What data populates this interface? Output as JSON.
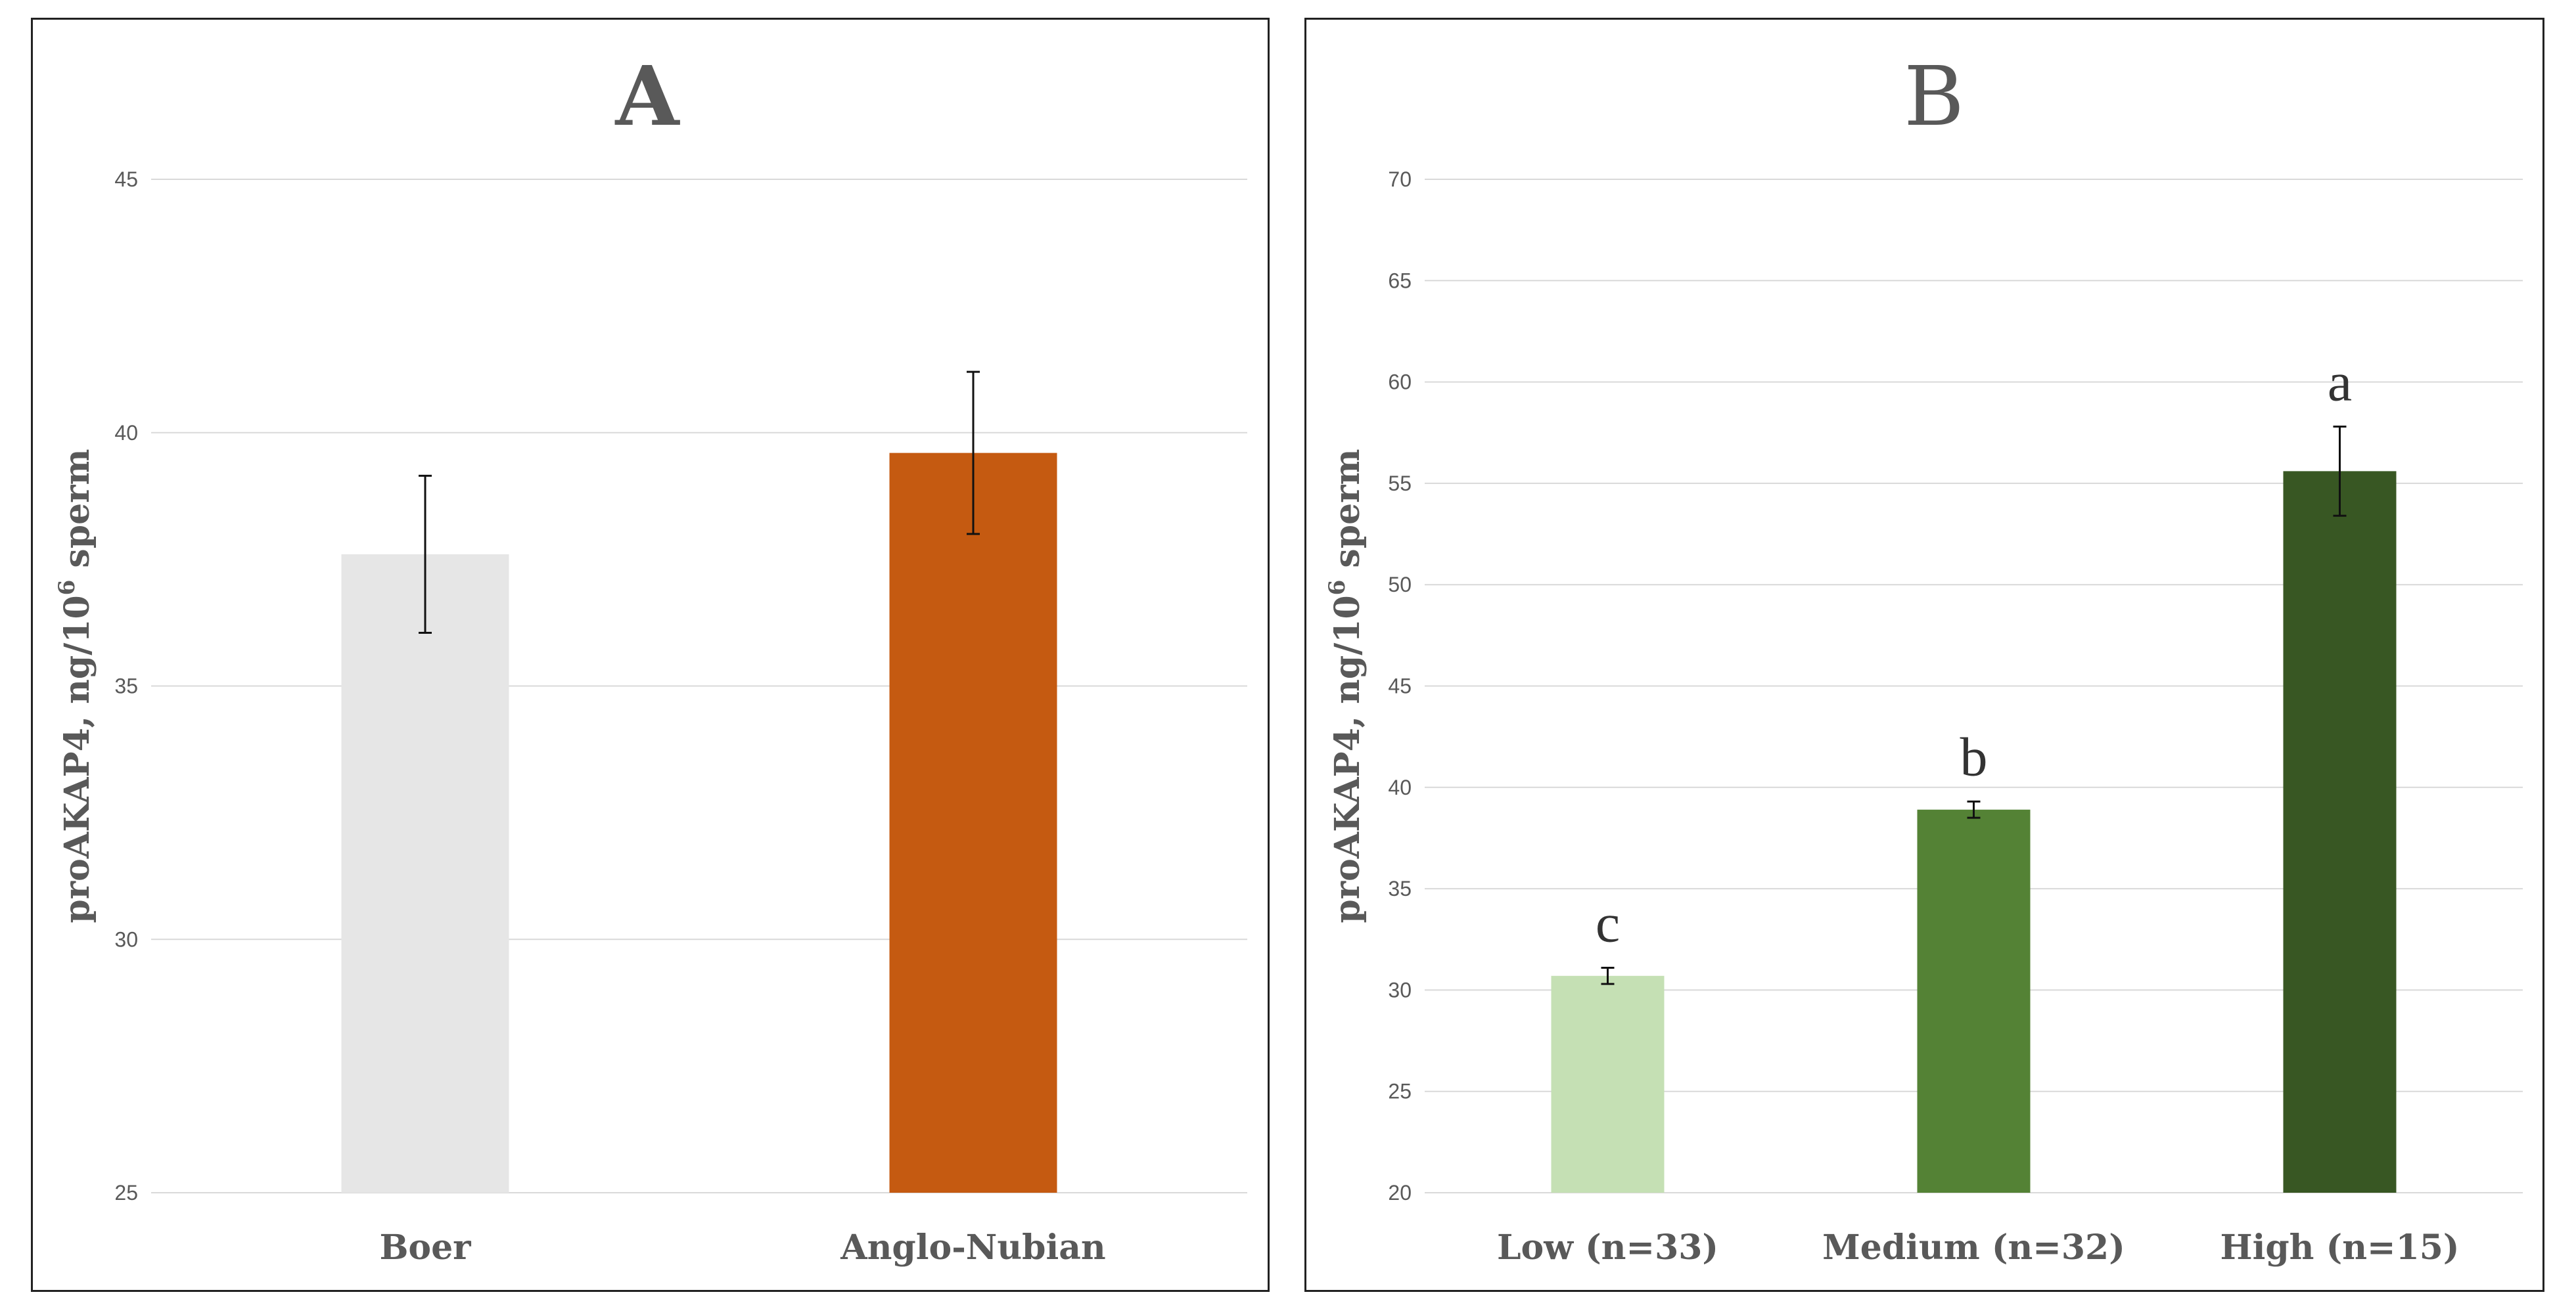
{
  "chart_data": [
    {
      "type": "bar",
      "title": "A",
      "ylabel": "proAKAP4, ng/10",
      "ylabel_sup": "6",
      "ylabel_suffix": " sperm",
      "ylim": [
        25,
        45
      ],
      "yticks": [
        25,
        30,
        35,
        40,
        45
      ],
      "categories": [
        "Boer",
        "Anglo-Nubian"
      ],
      "values": [
        37.6,
        39.6
      ],
      "errors": [
        1.55,
        1.6
      ],
      "colors": [
        "#e6e6e6",
        "#c55a11"
      ],
      "grid": true,
      "legend": "none"
    },
    {
      "type": "bar",
      "title": "B",
      "ylabel": "proAKAP4, ng/10",
      "ylabel_sup": "6",
      "ylabel_suffix": " sperm",
      "ylim": [
        20,
        70
      ],
      "yticks": [
        20,
        25,
        30,
        35,
        40,
        45,
        50,
        55,
        60,
        65,
        70
      ],
      "categories": [
        "Low (n=33)",
        "Medium (n=32)",
        "High (n=15)"
      ],
      "values": [
        30.7,
        38.9,
        55.6
      ],
      "errors": [
        0.4,
        0.4,
        2.2
      ],
      "significance": [
        "c",
        "b",
        "a"
      ],
      "colors": [
        "#c5e0b4",
        "#548235",
        "#385723"
      ],
      "grid": true,
      "legend": "none"
    }
  ]
}
